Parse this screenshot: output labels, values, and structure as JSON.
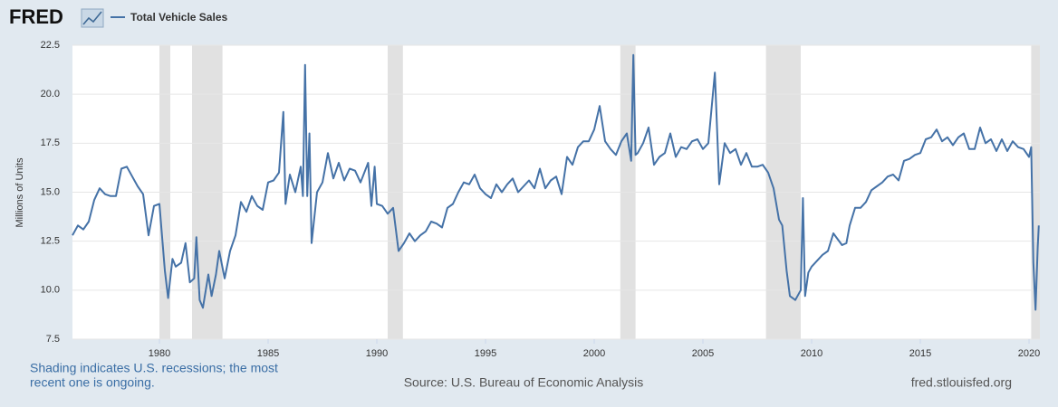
{
  "chart_data": {
    "type": "line",
    "logo": "FRED",
    "y_label": "Millions of Units",
    "notes": [
      "Shading indicates U.S. recessions; the most",
      "recent one is ongoing."
    ],
    "source": "Source: U.S. Bureau of Economic Analysis",
    "site": "fred.stlouisfed.org",
    "xlim": [
      1976,
      2020.5
    ],
    "xticks": [
      1980,
      1985,
      1990,
      1995,
      2000,
      2005,
      2010,
      2015,
      2020
    ],
    "ylim": [
      7.5,
      22.5
    ],
    "yticks": [
      7.5,
      {
        "value": 10,
        "label": "10.0"
      },
      12.5,
      {
        "value": 15,
        "label": "15.0"
      },
      17.5,
      {
        "value": 20,
        "label": "20.0"
      },
      22.5
    ],
    "grid": true,
    "recession_color": "#e1e1e1",
    "recessions": [
      [
        1980.0,
        1980.5
      ],
      [
        1981.5,
        1982.9
      ],
      [
        1990.5,
        1991.2
      ],
      [
        2001.2,
        2001.9
      ],
      [
        2007.9,
        2009.5
      ],
      [
        2020.1,
        2020.5
      ]
    ],
    "x": [
      1976.0,
      1976.25,
      1976.5,
      1976.75,
      1977.0,
      1977.25,
      1977.5,
      1977.75,
      1978.0,
      1978.25,
      1978.5,
      1978.75,
      1979.0,
      1979.25,
      1979.5,
      1979.75,
      1980.0,
      1980.25,
      1980.4,
      1980.6,
      1980.75,
      1981.0,
      1981.2,
      1981.4,
      1981.6,
      1981.7,
      1981.85,
      1982.0,
      1982.25,
      1982.4,
      1982.6,
      1982.75,
      1983.0,
      1983.25,
      1983.5,
      1983.75,
      1984.0,
      1984.25,
      1984.5,
      1984.75,
      1985.0,
      1985.25,
      1985.5,
      1985.7,
      1985.8,
      1986.0,
      1986.25,
      1986.5,
      1986.6,
      1986.7,
      1986.8,
      1986.9,
      1987.0,
      1987.25,
      1987.5,
      1987.75,
      1988.0,
      1988.25,
      1988.5,
      1988.75,
      1989.0,
      1989.25,
      1989.6,
      1989.75,
      1989.9,
      1990.0,
      1990.25,
      1990.5,
      1990.75,
      1991.0,
      1991.25,
      1991.5,
      1991.75,
      1992.0,
      1992.25,
      1992.5,
      1992.75,
      1993.0,
      1993.25,
      1993.5,
      1993.75,
      1994.0,
      1994.25,
      1994.5,
      1994.75,
      1995.0,
      1995.25,
      1995.5,
      1995.75,
      1996.0,
      1996.25,
      1996.5,
      1996.75,
      1997.0,
      1997.25,
      1997.5,
      1997.75,
      1998.0,
      1998.25,
      1998.5,
      1998.75,
      1999.0,
      1999.25,
      1999.5,
      1999.75,
      2000.0,
      2000.25,
      2000.5,
      2000.75,
      2001.0,
      2001.25,
      2001.5,
      2001.7,
      2001.8,
      2001.9,
      2002.0,
      2002.25,
      2002.5,
      2002.75,
      2003.0,
      2003.25,
      2003.5,
      2003.75,
      2004.0,
      2004.25,
      2004.5,
      2004.75,
      2005.0,
      2005.25,
      2005.55,
      2005.75,
      2006.0,
      2006.25,
      2006.5,
      2006.75,
      2007.0,
      2007.25,
      2007.5,
      2007.75,
      2008.0,
      2008.25,
      2008.5,
      2008.65,
      2008.85,
      2009.0,
      2009.25,
      2009.5,
      2009.6,
      2009.7,
      2009.85,
      2010.0,
      2010.25,
      2010.5,
      2010.75,
      2011.0,
      2011.4,
      2011.6,
      2011.75,
      2012.0,
      2012.25,
      2012.5,
      2012.75,
      2013.0,
      2013.25,
      2013.5,
      2013.75,
      2014.0,
      2014.25,
      2014.5,
      2014.75,
      2015.0,
      2015.25,
      2015.5,
      2015.75,
      2016.0,
      2016.25,
      2016.5,
      2016.75,
      2017.0,
      2017.25,
      2017.5,
      2017.75,
      2018.0,
      2018.25,
      2018.5,
      2018.75,
      2019.0,
      2019.25,
      2019.5,
      2019.75,
      2020.0,
      2020.1,
      2020.2,
      2020.3,
      2020.4,
      2020.45
    ],
    "series": [
      {
        "name": "Total Vehicle Sales",
        "color": "#4572a7",
        "values": [
          12.8,
          13.3,
          13.1,
          13.5,
          14.6,
          15.2,
          14.9,
          14.8,
          14.8,
          16.2,
          16.3,
          15.8,
          15.3,
          14.9,
          12.8,
          14.3,
          14.4,
          11.0,
          9.6,
          11.6,
          11.2,
          11.4,
          12.4,
          10.4,
          10.6,
          12.7,
          9.5,
          9.1,
          10.8,
          9.7,
          10.8,
          12.0,
          10.6,
          12.0,
          12.8,
          14.5,
          14.0,
          14.8,
          14.3,
          14.1,
          15.5,
          15.6,
          16.0,
          19.1,
          14.4,
          15.9,
          15.0,
          16.3,
          14.8,
          21.5,
          14.8,
          18.0,
          12.4,
          15.0,
          15.5,
          17.0,
          15.7,
          16.5,
          15.6,
          16.2,
          16.1,
          15.5,
          16.5,
          14.3,
          16.3,
          14.4,
          14.3,
          13.9,
          14.2,
          12.0,
          12.4,
          12.9,
          12.5,
          12.8,
          13.0,
          13.5,
          13.4,
          13.2,
          14.2,
          14.4,
          15.0,
          15.5,
          15.4,
          15.9,
          15.2,
          14.9,
          14.7,
          15.4,
          15.0,
          15.4,
          15.7,
          15.0,
          15.3,
          15.6,
          15.2,
          16.2,
          15.2,
          15.6,
          15.8,
          14.9,
          16.8,
          16.4,
          17.3,
          17.6,
          17.6,
          18.2,
          19.4,
          17.6,
          17.2,
          16.9,
          17.6,
          18.0,
          16.6,
          22.0,
          16.9,
          17.0,
          17.5,
          18.3,
          16.4,
          16.8,
          17.0,
          18.0,
          16.8,
          17.3,
          17.2,
          17.6,
          17.7,
          17.2,
          17.5,
          21.1,
          15.4,
          17.5,
          17.0,
          17.2,
          16.4,
          17.0,
          16.3,
          16.3,
          16.4,
          16.0,
          15.2,
          13.6,
          13.3,
          11.0,
          9.7,
          9.5,
          10.0,
          14.7,
          9.7,
          10.9,
          11.2,
          11.5,
          11.8,
          12.0,
          12.9,
          12.3,
          12.4,
          13.3,
          14.2,
          14.2,
          14.5,
          15.1,
          15.3,
          15.5,
          15.8,
          15.9,
          15.6,
          16.6,
          16.7,
          16.9,
          17.0,
          17.7,
          17.8,
          18.2,
          17.6,
          17.8,
          17.4,
          17.8,
          18.0,
          17.2,
          17.2,
          18.3,
          17.5,
          17.7,
          17.1,
          17.7,
          17.1,
          17.6,
          17.3,
          17.2,
          16.8,
          17.3,
          11.4,
          9.0,
          12.2,
          13.3
        ]
      }
    ]
  }
}
